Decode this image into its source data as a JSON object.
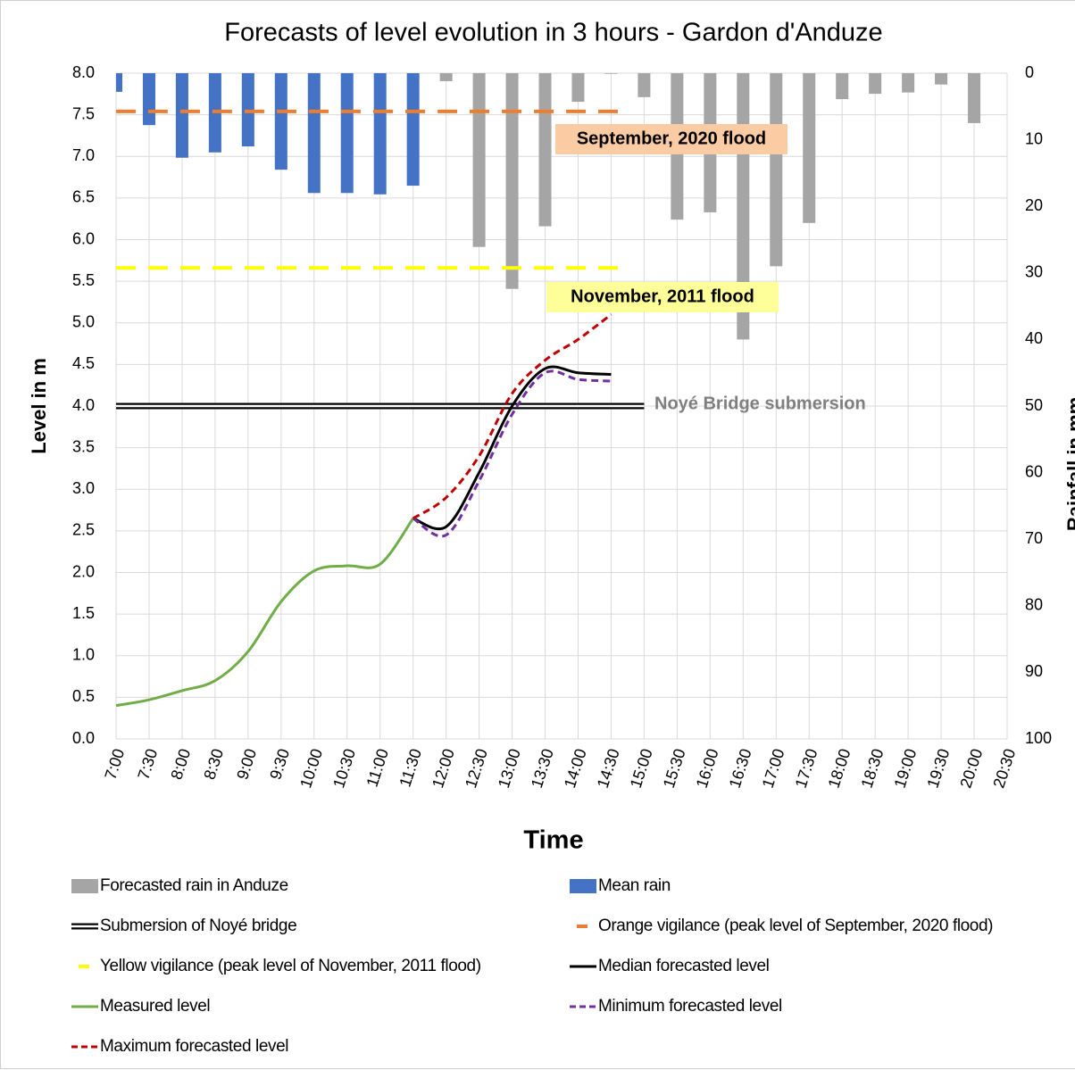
{
  "chart_data": {
    "type": "combo",
    "title": "Forecasts of level evolution in 3 hours - Gardon d'Anduze",
    "x_label": "Time",
    "y_label": "Level in m",
    "y2_label": "Rainfall in mm",
    "xlim": [
      7,
      20.5
    ],
    "xticks": [
      {
        "value": 7,
        "label": "7:00"
      },
      {
        "value": 7.5,
        "label": "7:30"
      },
      {
        "value": 8,
        "label": "8:00"
      },
      {
        "value": 8.5,
        "label": "8:30"
      },
      {
        "value": 9,
        "label": "9:00"
      },
      {
        "value": 9.5,
        "label": "9:30"
      },
      {
        "value": 10,
        "label": "10:00"
      },
      {
        "value": 10.5,
        "label": "10:30"
      },
      {
        "value": 11,
        "label": "11:00"
      },
      {
        "value": 11.5,
        "label": "11:30"
      },
      {
        "value": 12,
        "label": "12:00"
      },
      {
        "value": 12.5,
        "label": "12:30"
      },
      {
        "value": 13,
        "label": "13:00"
      },
      {
        "value": 13.5,
        "label": "13:30"
      },
      {
        "value": 14,
        "label": "14:00"
      },
      {
        "value": 14.5,
        "label": "14:30"
      },
      {
        "value": 15,
        "label": "15:00"
      },
      {
        "value": 15.5,
        "label": "15:30"
      },
      {
        "value": 16,
        "label": "16:00"
      },
      {
        "value": 16.5,
        "label": "16:30"
      },
      {
        "value": 17,
        "label": "17:00"
      },
      {
        "value": 17.5,
        "label": "17:30"
      },
      {
        "value": 18,
        "label": "18:00"
      },
      {
        "value": 18.5,
        "label": "18:30"
      },
      {
        "value": 19,
        "label": "19:00"
      },
      {
        "value": 19.5,
        "label": "19:30"
      },
      {
        "value": 20,
        "label": "20:00"
      },
      {
        "value": 20.5,
        "label": "20:30"
      }
    ],
    "ylim": [
      0,
      8
    ],
    "yticks": [
      {
        "value": 0,
        "label": "0.0"
      },
      {
        "value": 0.5,
        "label": "0.5"
      },
      {
        "value": 1,
        "label": "1.0"
      },
      {
        "value": 1.5,
        "label": "1.5"
      },
      {
        "value": 2,
        "label": "2.0"
      },
      {
        "value": 2.5,
        "label": "2.5"
      },
      {
        "value": 3,
        "label": "3.0"
      },
      {
        "value": 3.5,
        "label": "3.5"
      },
      {
        "value": 4,
        "label": "4.0"
      },
      {
        "value": 4.5,
        "label": "4.5"
      },
      {
        "value": 5,
        "label": "5.0"
      },
      {
        "value": 5.5,
        "label": "5.5"
      },
      {
        "value": 6,
        "label": "6.0"
      },
      {
        "value": 6.5,
        "label": "6.5"
      },
      {
        "value": 7,
        "label": "7.0"
      },
      {
        "value": 7.5,
        "label": "7.5"
      },
      {
        "value": 8,
        "label": "8.0"
      }
    ],
    "y2lim": [
      0,
      100
    ],
    "y2_inverted": true,
    "y2ticks": [
      0,
      10,
      20,
      30,
      40,
      50,
      60,
      70,
      80,
      90,
      100
    ],
    "grid": true,
    "series": [
      {
        "name": "Forecasted rain in Anduze",
        "kind": "bar",
        "axis": "y2",
        "color": "#a5a5a5",
        "x": [
          12,
          12.5,
          13,
          13.5,
          14,
          14.5,
          15,
          15.5,
          16,
          16.5,
          17,
          17.5,
          18,
          18.5,
          19,
          19.5,
          20
        ],
        "values": [
          1.2,
          26.1,
          32.4,
          23,
          4.3,
          0.1,
          3.6,
          22,
          20.9,
          40,
          29,
          22.5,
          3.9,
          3.1,
          2.9,
          1.7,
          7.5
        ]
      },
      {
        "name": "Mean rain",
        "kind": "bar",
        "axis": "y2",
        "color": "#4472c4",
        "x": [
          7,
          7.5,
          8,
          8.5,
          9,
          9.5,
          10,
          10.5,
          11,
          11.5
        ],
        "values": [
          2.8,
          7.8,
          12.7,
          11.9,
          11,
          14.5,
          18,
          18,
          18.2,
          16.9
        ]
      },
      {
        "name": "Submersion of Noyé bridge",
        "kind": "line",
        "style": "double",
        "color": "#000000",
        "x": [
          7,
          15
        ],
        "values": [
          4,
          4
        ]
      },
      {
        "name": "Orange vigilance (peak level of September, 2020 flood)",
        "kind": "line",
        "style": "dashed",
        "color": "#ed7d31",
        "x": [
          7,
          14.75
        ],
        "values": [
          7.54,
          7.54
        ]
      },
      {
        "name": "Yellow vigilance (peak level of November, 2011 flood)",
        "kind": "line",
        "style": "dashed",
        "color": "#ffff00",
        "x": [
          7,
          14.75
        ],
        "values": [
          5.66,
          5.66
        ]
      },
      {
        "name": "Median forecasted level",
        "kind": "line",
        "style": "solid",
        "color": "#000000",
        "x": [
          11.5,
          12,
          12.5,
          13,
          13.5,
          14,
          14.5
        ],
        "values": [
          2.65,
          2.55,
          3.2,
          4.0,
          4.45,
          4.4,
          4.38
        ]
      },
      {
        "name": "Measured level",
        "kind": "line",
        "style": "solid",
        "color": "#70ad47",
        "x": [
          7,
          7.5,
          8,
          8.5,
          9,
          9.5,
          10,
          10.5,
          11,
          11.5
        ],
        "values": [
          0.4,
          0.47,
          0.58,
          0.7,
          1.05,
          1.65,
          2.02,
          2.08,
          2.1,
          2.65
        ]
      },
      {
        "name": "Minimum forecasted level",
        "kind": "line",
        "style": "dotted",
        "color": "#7030a0",
        "x": [
          11.5,
          12,
          12.5,
          13,
          13.5,
          14,
          14.5
        ],
        "values": [
          2.65,
          2.45,
          3.1,
          3.9,
          4.4,
          4.32,
          4.3
        ]
      },
      {
        "name": "Maximum forecasted level",
        "kind": "line",
        "style": "dotted",
        "color": "#c00000",
        "x": [
          11.5,
          12,
          12.5,
          13,
          13.5,
          14,
          14.5
        ],
        "values": [
          2.65,
          2.9,
          3.4,
          4.15,
          4.55,
          4.8,
          5.1
        ]
      }
    ],
    "annotations": [
      {
        "text": "September, 2020 flood",
        "background": "#fbcba4"
      },
      {
        "text": "November, 2011 flood",
        "background": "#ffff99"
      },
      {
        "text": "Noyé Bridge submersion",
        "color": "#7f7f7f"
      }
    ]
  }
}
